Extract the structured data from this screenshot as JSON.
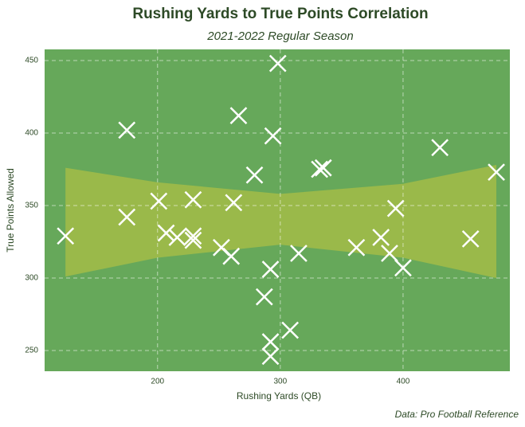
{
  "chart_data": {
    "type": "scatter",
    "title": "Rushing Yards to True Points Correlation",
    "subtitle": "2021-2022 Regular Season",
    "caption": "Data: Pro Football Reference",
    "x_label": "Rushing Yards (QB)",
    "y_label": "True Points Allowed",
    "xlim": [
      108,
      487
    ],
    "ylim": [
      235.7,
      457.7
    ],
    "xticks": [
      200,
      300,
      400
    ],
    "yticks": [
      250,
      300,
      350,
      400,
      450
    ],
    "grid": true,
    "background": "#66a85a",
    "marker_color": "#ffffff",
    "band": {
      "color": "#9ab94a",
      "x": [
        125,
        200,
        300,
        400,
        476
      ],
      "upper": [
        376,
        366,
        358,
        365,
        378
      ],
      "lower": [
        301,
        314,
        323,
        314,
        300
      ]
    },
    "x": [
      125,
      175,
      175,
      201,
      207,
      216,
      229,
      229,
      229,
      252,
      260,
      262,
      266,
      279,
      287,
      292,
      292,
      292,
      294,
      298,
      308,
      315,
      332,
      335,
      362,
      382,
      389,
      394,
      400,
      430,
      455,
      476
    ],
    "y": [
      329,
      402,
      342,
      353,
      331,
      328,
      354,
      329,
      326,
      321,
      315,
      352,
      412,
      371,
      287,
      306,
      256,
      246,
      398,
      448,
      264,
      317,
      375,
      376,
      321,
      328,
      317,
      348,
      307,
      390,
      327,
      373
    ]
  }
}
